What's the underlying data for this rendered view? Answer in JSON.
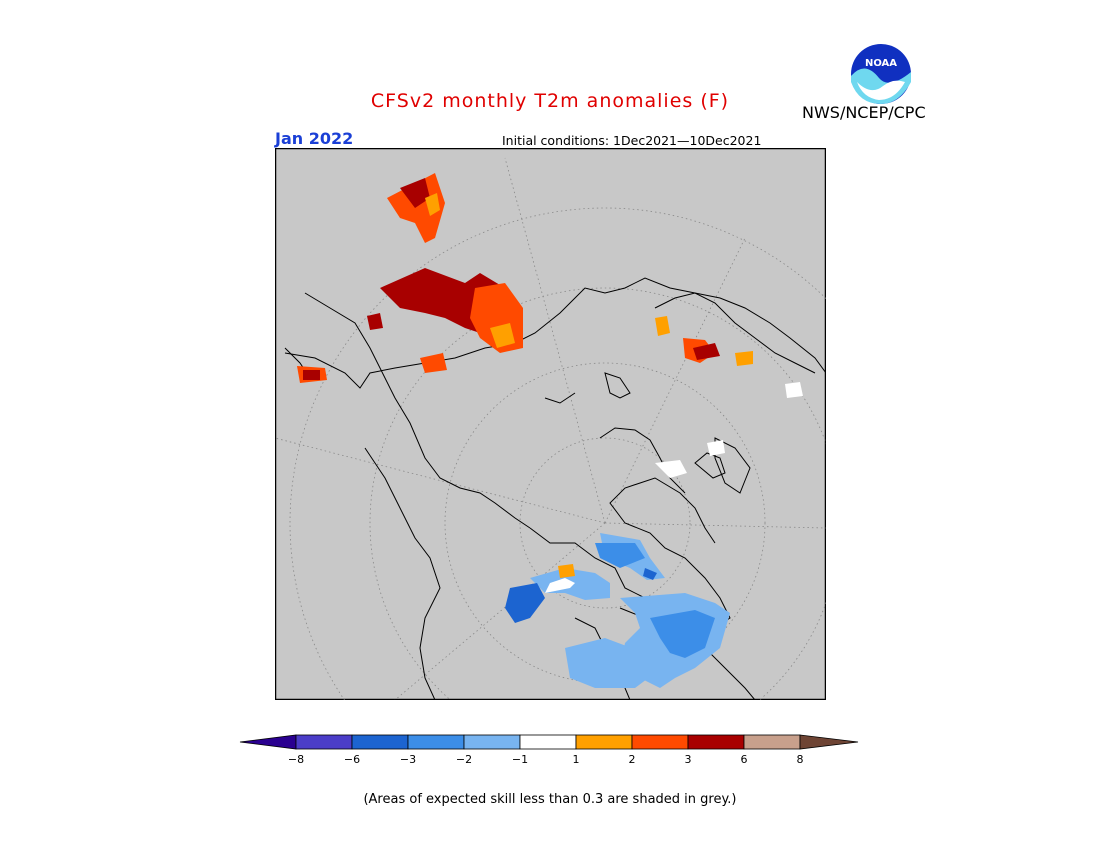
{
  "title": "CFSv2 monthly T2m anomalies (F)",
  "month": "Jan 2022",
  "initial_conditions": "Initial conditions: 1Dec2021—10Dec2021",
  "agency": "NWS/NCEP/CPC",
  "logo_text": "NOAA",
  "footnote": "(Areas of expected skill less than 0.3 are shaded in grey.)",
  "colors": {
    "title": "#e00000",
    "month": "#1a3fd6",
    "map_background": "#c8c8c8",
    "no_skill_grey": "#c8c8c8"
  },
  "legend": {
    "ticks": [
      "−8",
      "−6",
      "−3",
      "−2",
      "−1",
      "1",
      "2",
      "3",
      "6",
      "8"
    ],
    "bins": [
      {
        "range": "< -8",
        "color": "#2a0090"
      },
      {
        "range": "-8 to -6",
        "color": "#4b3dc8"
      },
      {
        "range": "-6 to -3",
        "color": "#1c64d0"
      },
      {
        "range": "-3 to -2",
        "color": "#3c8ee8"
      },
      {
        "range": "-2 to -1",
        "color": "#78b4f0"
      },
      {
        "range": "-1 to 1",
        "color": "#ffffff"
      },
      {
        "range": "1 to 2",
        "color": "#ffa000"
      },
      {
        "range": "2 to 3",
        "color": "#ff4a00"
      },
      {
        "range": "3 to 6",
        "color": "#a80000"
      },
      {
        "range": "6 to 8",
        "color": "#c8a08c"
      },
      {
        "range": "> 8",
        "color": "#6e4434"
      }
    ]
  }
}
